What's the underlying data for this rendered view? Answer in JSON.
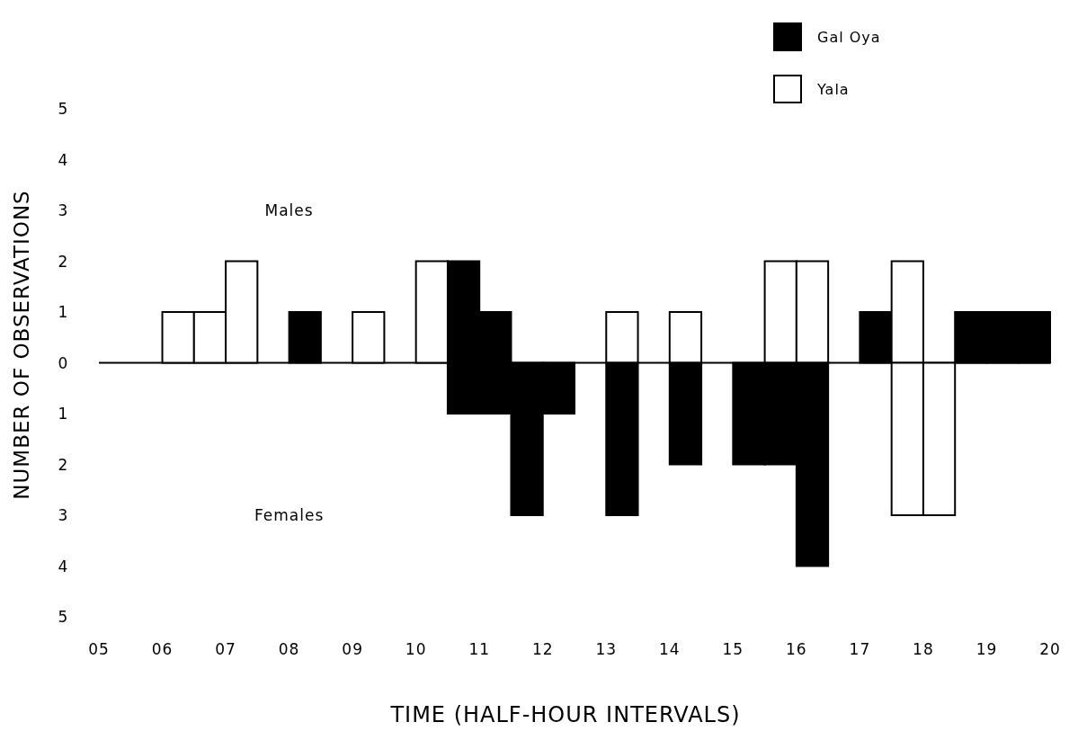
{
  "chart_data": {
    "type": "histogram",
    "xlabel": "TIME (HALF-HOUR INTERVALS)",
    "ylabel": "NUMBER OF OBSERVATIONS",
    "bins": [
      5,
      5.5,
      6,
      6.5,
      7,
      7.5,
      8,
      8.5,
      9,
      9.5,
      10,
      10.5,
      11,
      11.5,
      12,
      12.5,
      13,
      13.5,
      14,
      14.5,
      15,
      15.5,
      16,
      16.5,
      17,
      17.5,
      18,
      18.5,
      19,
      19.5,
      20
    ],
    "series": [
      {
        "name": "Gal Oya",
        "color": "#000000",
        "values": [
          null,
          null,
          null,
          null,
          null,
          null,
          1,
          null,
          null,
          null,
          null,
          2,
          1,
          null,
          null,
          null,
          null,
          null,
          null,
          null,
          null,
          null,
          null,
          null,
          1,
          null,
          null,
          1,
          1,
          1
        ]
      },
      {
        "name": "Yala",
        "color": "#ffffff",
        "values": [
          null,
          null,
          1,
          1,
          2,
          null,
          null,
          null,
          1,
          null,
          2,
          null,
          null,
          null,
          null,
          null,
          1,
          null,
          1,
          null,
          null,
          2,
          2,
          null,
          null,
          2,
          null,
          null,
          null,
          null
        ]
      },
      {
        "color": "#000000",
        "values": [
          null,
          null,
          null,
          null,
          null,
          null,
          null,
          null,
          null,
          null,
          null,
          -1,
          -1,
          -3,
          -1,
          null,
          -3,
          null,
          -2,
          null,
          -2,
          -2,
          -4,
          null,
          null,
          null,
          null,
          null,
          null,
          null
        ]
      },
      {
        "color": "#ffffff",
        "values": [
          null,
          null,
          null,
          null,
          null,
          null,
          null,
          null,
          null,
          null,
          null,
          null,
          null,
          null,
          null,
          null,
          null,
          null,
          null,
          null,
          null,
          null,
          null,
          null,
          null,
          -3,
          -3,
          null,
          null,
          null
        ]
      }
    ],
    "xlim": [
      5,
      20
    ],
    "xticks": [
      {
        "value": 5,
        "label": "05"
      },
      {
        "value": 6,
        "label": "06"
      },
      {
        "value": 7,
        "label": "07"
      },
      {
        "value": 8,
        "label": "08"
      },
      {
        "value": 9,
        "label": "09"
      },
      10,
      11,
      12,
      13,
      14,
      15,
      16,
      17,
      18,
      19,
      20
    ],
    "ylim": [
      -5,
      5
    ],
    "yticks": [
      {
        "value": -5,
        "label": "5"
      },
      {
        "value": -4,
        "label": "4"
      },
      {
        "value": -3,
        "label": "3"
      },
      {
        "value": -2,
        "label": "2"
      },
      {
        "value": -1,
        "label": "1"
      },
      0,
      1,
      2,
      3,
      4,
      5
    ],
    "annotations": [
      "Males",
      "Females"
    ],
    "legend": "top right",
    "grid": false
  }
}
